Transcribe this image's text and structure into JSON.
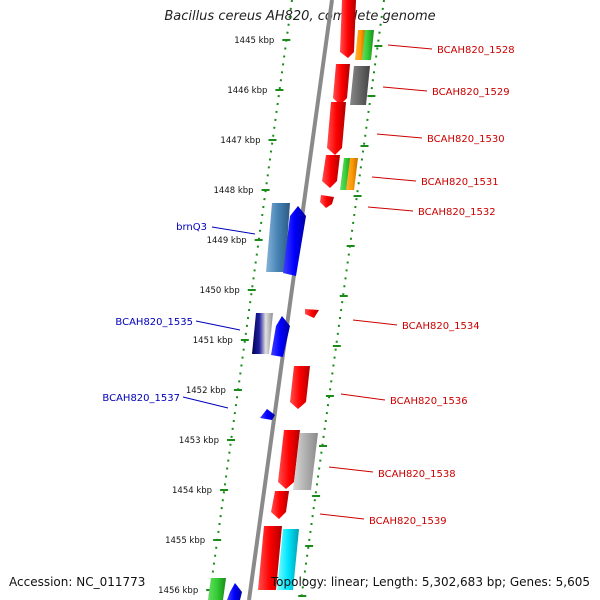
{
  "title": "Bacillus cereus AH820, complete genome",
  "footer": {
    "accession": "Accession: NC_011773",
    "summary": "Topology: linear; Length: 5,302,683 bp; Genes: 5,605"
  },
  "ruler": {
    "ticks": [
      "1445 kbp",
      "1446 kbp",
      "1447 kbp",
      "1448 kbp",
      "1449 kbp",
      "1450 kbp",
      "1451 kbp",
      "1452 kbp",
      "1453 kbp",
      "1454 kbp",
      "1455 kbp",
      "1456 kbp"
    ]
  },
  "colors": {
    "forward_strand_gene": "#ff0000",
    "reverse_strand_gene": "#0000ff",
    "forward_label": "#cc0000",
    "reverse_label": "#0000bb",
    "tick_color": "#1a8a1a",
    "backbone": "#888888"
  },
  "genes": [
    {
      "label": "BCAH820_1528",
      "strand": "forward"
    },
    {
      "label": "BCAH820_1529",
      "strand": "forward"
    },
    {
      "label": "BCAH820_1530",
      "strand": "forward"
    },
    {
      "label": "BCAH820_1531",
      "strand": "forward"
    },
    {
      "label": "BCAH820_1532",
      "strand": "forward"
    },
    {
      "label": "brnQ3",
      "strand": "reverse"
    },
    {
      "label": "BCAH820_1534",
      "strand": "forward"
    },
    {
      "label": "BCAH820_1535",
      "strand": "reverse"
    },
    {
      "label": "BCAH820_1536",
      "strand": "forward"
    },
    {
      "label": "BCAH820_1537",
      "strand": "reverse"
    },
    {
      "label": "BCAH820_1538",
      "strand": "forward"
    },
    {
      "label": "BCAH820_1539",
      "strand": "forward"
    }
  ]
}
